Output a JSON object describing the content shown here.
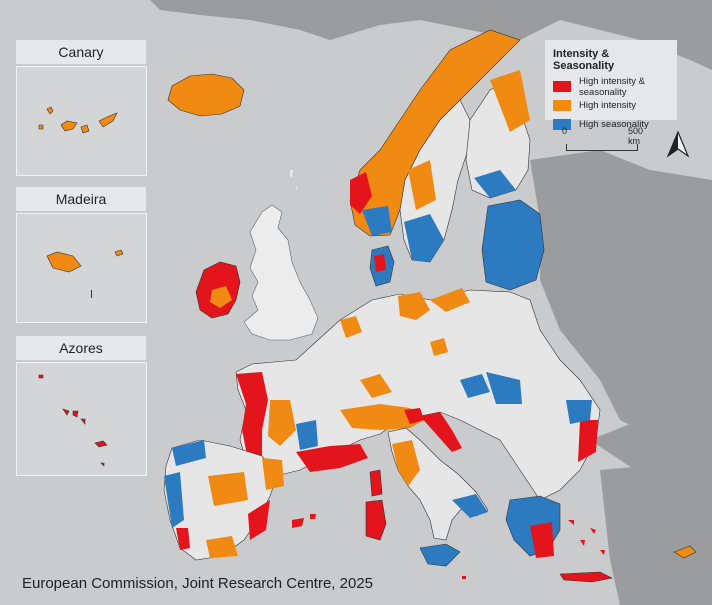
{
  "legend": {
    "title": "Intensity & Seasonality",
    "items": [
      {
        "label": "High intensity & seasonality",
        "color": "#e3141b"
      },
      {
        "label": "High intensity",
        "color": "#f08a12"
      },
      {
        "label": "High seasonality",
        "color": "#2c7bc0"
      }
    ]
  },
  "scalebar": {
    "left_label": "0",
    "right_label": "500 km"
  },
  "insets": {
    "canary": "Canary",
    "madeira": "Madeira",
    "azores": "Azores"
  },
  "credit": "European Commission, Joint Research Centre, 2025",
  "colors": {
    "sea": "#c9cbcd",
    "land_other": "#9a9b9d",
    "no_class": "#e6e6e6",
    "border": "#333333"
  },
  "north_arrow_icon": "north-arrow-icon"
}
